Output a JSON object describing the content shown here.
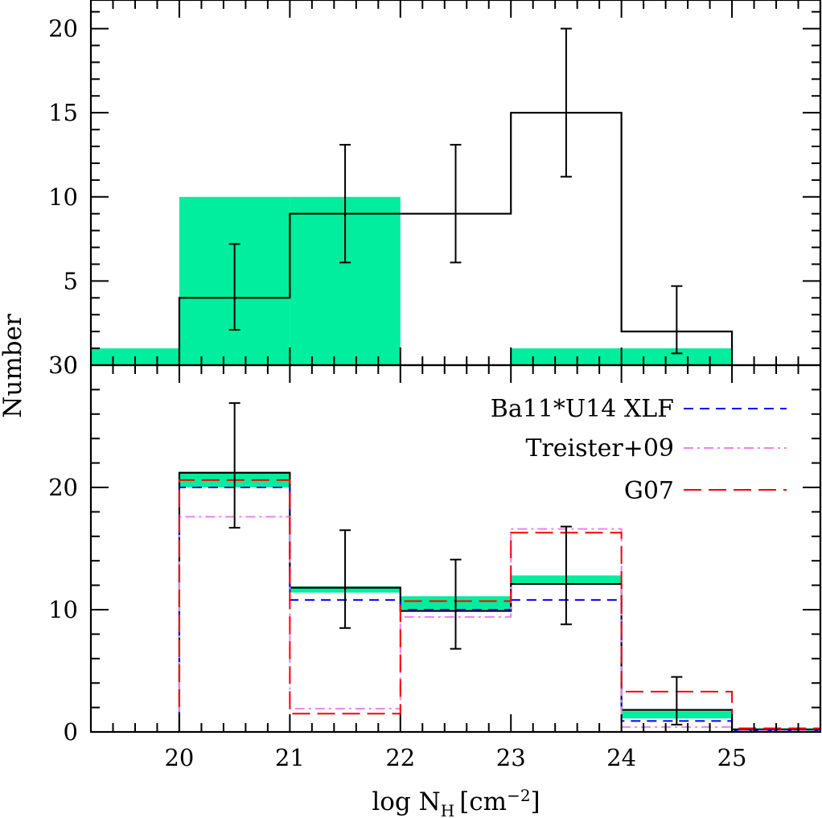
{
  "chart_data": [
    {
      "panel": "top",
      "type": "histogram",
      "ylabel": "Number",
      "xlim": [
        19.2,
        25.8
      ],
      "ylim": [
        0,
        21.7
      ],
      "yticks": [
        0,
        5,
        10,
        15,
        20
      ],
      "bin_edges": [
        19,
        20,
        21,
        22,
        23,
        24,
        25
      ],
      "series": [
        {
          "name": "filled",
          "style": "filled",
          "color": "#00ee9e",
          "values": [
            1,
            10,
            10,
            0,
            1,
            1
          ]
        },
        {
          "name": "observed",
          "style": "step",
          "color": "#000000",
          "bin_edges": [
            20,
            21,
            22,
            23,
            24,
            25
          ],
          "values": [
            4,
            9,
            9,
            15,
            2
          ],
          "error_x": [
            20.5,
            21.5,
            22.5,
            23.5,
            24.5
          ],
          "error_low": [
            2.1,
            6.1,
            6.1,
            11.2,
            0.7
          ],
          "error_high": [
            7.2,
            13.1,
            13.1,
            20.0,
            4.7
          ]
        }
      ]
    },
    {
      "panel": "bottom",
      "type": "histogram",
      "xlabel_main": "log N",
      "xlabel_sub": "H",
      "xlabel_unit": "[cm",
      "xlabel_exp": "−2",
      "xlabel_close": "]",
      "xlim": [
        19.2,
        25.8
      ],
      "ylim": [
        0,
        30
      ],
      "yticks": [
        0,
        10,
        20,
        30
      ],
      "xticks": [
        20,
        21,
        22,
        23,
        24,
        25
      ],
      "bin_edges": [
        20,
        21,
        22,
        23,
        24,
        25,
        26
      ],
      "series": [
        {
          "name": "band",
          "style": "filled-band",
          "color": "#00ee9e",
          "low": [
            20.0,
            11.4,
            10.0,
            12.1,
            1.1,
            0.1
          ],
          "high": [
            21.2,
            11.9,
            11.1,
            12.8,
            1.7,
            0.3
          ]
        },
        {
          "name": "observed",
          "style": "step",
          "color": "#000000",
          "values": [
            21.2,
            11.8,
            9.9,
            12.1,
            1.8,
            0.2
          ],
          "error_x": [
            20.5,
            21.5,
            22.5,
            23.5,
            24.5
          ],
          "error_low": [
            16.7,
            8.5,
            6.8,
            8.8,
            0.6
          ],
          "error_high": [
            26.9,
            16.5,
            14.1,
            16.8,
            4.5
          ]
        },
        {
          "name": "Ba11*U14 XLF",
          "style": "dashed",
          "color": "#0000ff",
          "values": [
            20.0,
            10.8,
            10.0,
            10.8,
            0.9,
            0.1
          ]
        },
        {
          "name": "Treister+09",
          "style": "dashdot",
          "color": "#ee82ee",
          "values": [
            17.6,
            1.9,
            9.4,
            16.6,
            0.4,
            0.1
          ]
        },
        {
          "name": "G07",
          "style": "longdash",
          "color": "#ff0000",
          "values": [
            20.6,
            1.5,
            10.7,
            16.3,
            3.3,
            0.3
          ]
        }
      ],
      "legend": [
        "Ba11*U14 XLF",
        "Treister+09",
        "G07"
      ]
    }
  ]
}
